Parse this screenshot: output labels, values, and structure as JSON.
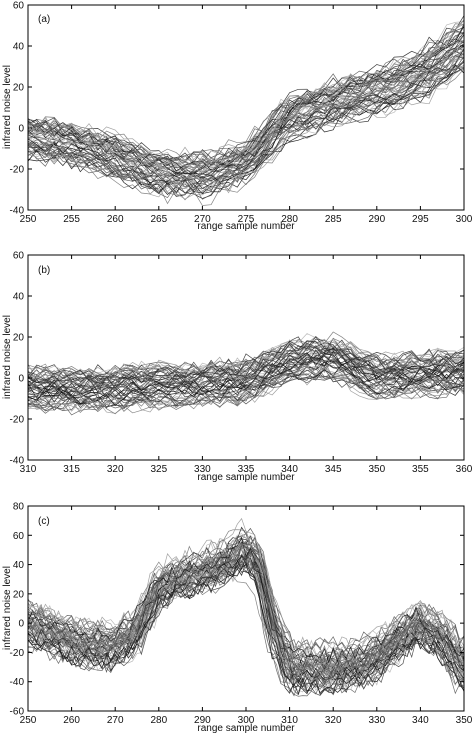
{
  "chart_data": [
    {
      "type": "line",
      "panel_label": "(a)",
      "xlabel": "range sample number",
      "ylabel": "infrared noise level",
      "xlim": [
        250,
        300
      ],
      "ylim": [
        -40,
        60
      ],
      "xticks": [
        250,
        255,
        260,
        265,
        270,
        275,
        280,
        285,
        290,
        295,
        300
      ],
      "yticks": [
        -40,
        -20,
        0,
        20,
        40,
        60
      ],
      "grid": false,
      "series_count": 60,
      "line_color": "#333333",
      "mean_profile": {
        "x": [
          250,
          255,
          260,
          265,
          270,
          275,
          280,
          285,
          290,
          295,
          300
        ],
        "y": [
          -5,
          -8,
          -15,
          -22,
          -24,
          -18,
          5,
          12,
          18,
          25,
          40
        ]
      }
    },
    {
      "type": "line",
      "panel_label": "(b)",
      "xlabel": "range sample number",
      "ylabel": "infrared noise level",
      "xlim": [
        310,
        360
      ],
      "ylim": [
        -40,
        60
      ],
      "xticks": [
        310,
        315,
        320,
        325,
        330,
        335,
        340,
        345,
        350,
        355,
        360
      ],
      "yticks": [
        -40,
        -20,
        0,
        20,
        40,
        60
      ],
      "grid": false,
      "series_count": 60,
      "line_color": "#333333",
      "mean_profile": {
        "x": [
          310,
          315,
          320,
          325,
          330,
          335,
          340,
          345,
          350,
          355,
          360
        ],
        "y": [
          -5,
          -6,
          -5,
          -4,
          -3,
          -2,
          8,
          10,
          0,
          2,
          3
        ]
      }
    },
    {
      "type": "line",
      "panel_label": "(c)",
      "xlabel": "range sample number",
      "ylabel": "infrared noise level",
      "xlim": [
        250,
        350
      ],
      "ylim": [
        -60,
        80
      ],
      "xticks": [
        250,
        260,
        270,
        280,
        290,
        300,
        310,
        320,
        330,
        340,
        350
      ],
      "yticks": [
        -60,
        -40,
        -20,
        0,
        20,
        40,
        60,
        80
      ],
      "grid": false,
      "series_count": 60,
      "line_color": "#333333",
      "mean_profile": {
        "x": [
          250,
          255,
          260,
          265,
          270,
          275,
          280,
          285,
          290,
          295,
          300,
          303,
          306,
          310,
          315,
          320,
          325,
          330,
          335,
          340,
          345,
          350
        ],
        "y": [
          0,
          -5,
          -12,
          -15,
          -15,
          -5,
          25,
          30,
          35,
          40,
          50,
          40,
          0,
          -30,
          -30,
          -30,
          -28,
          -22,
          -10,
          0,
          -10,
          -30
        ]
      }
    }
  ]
}
